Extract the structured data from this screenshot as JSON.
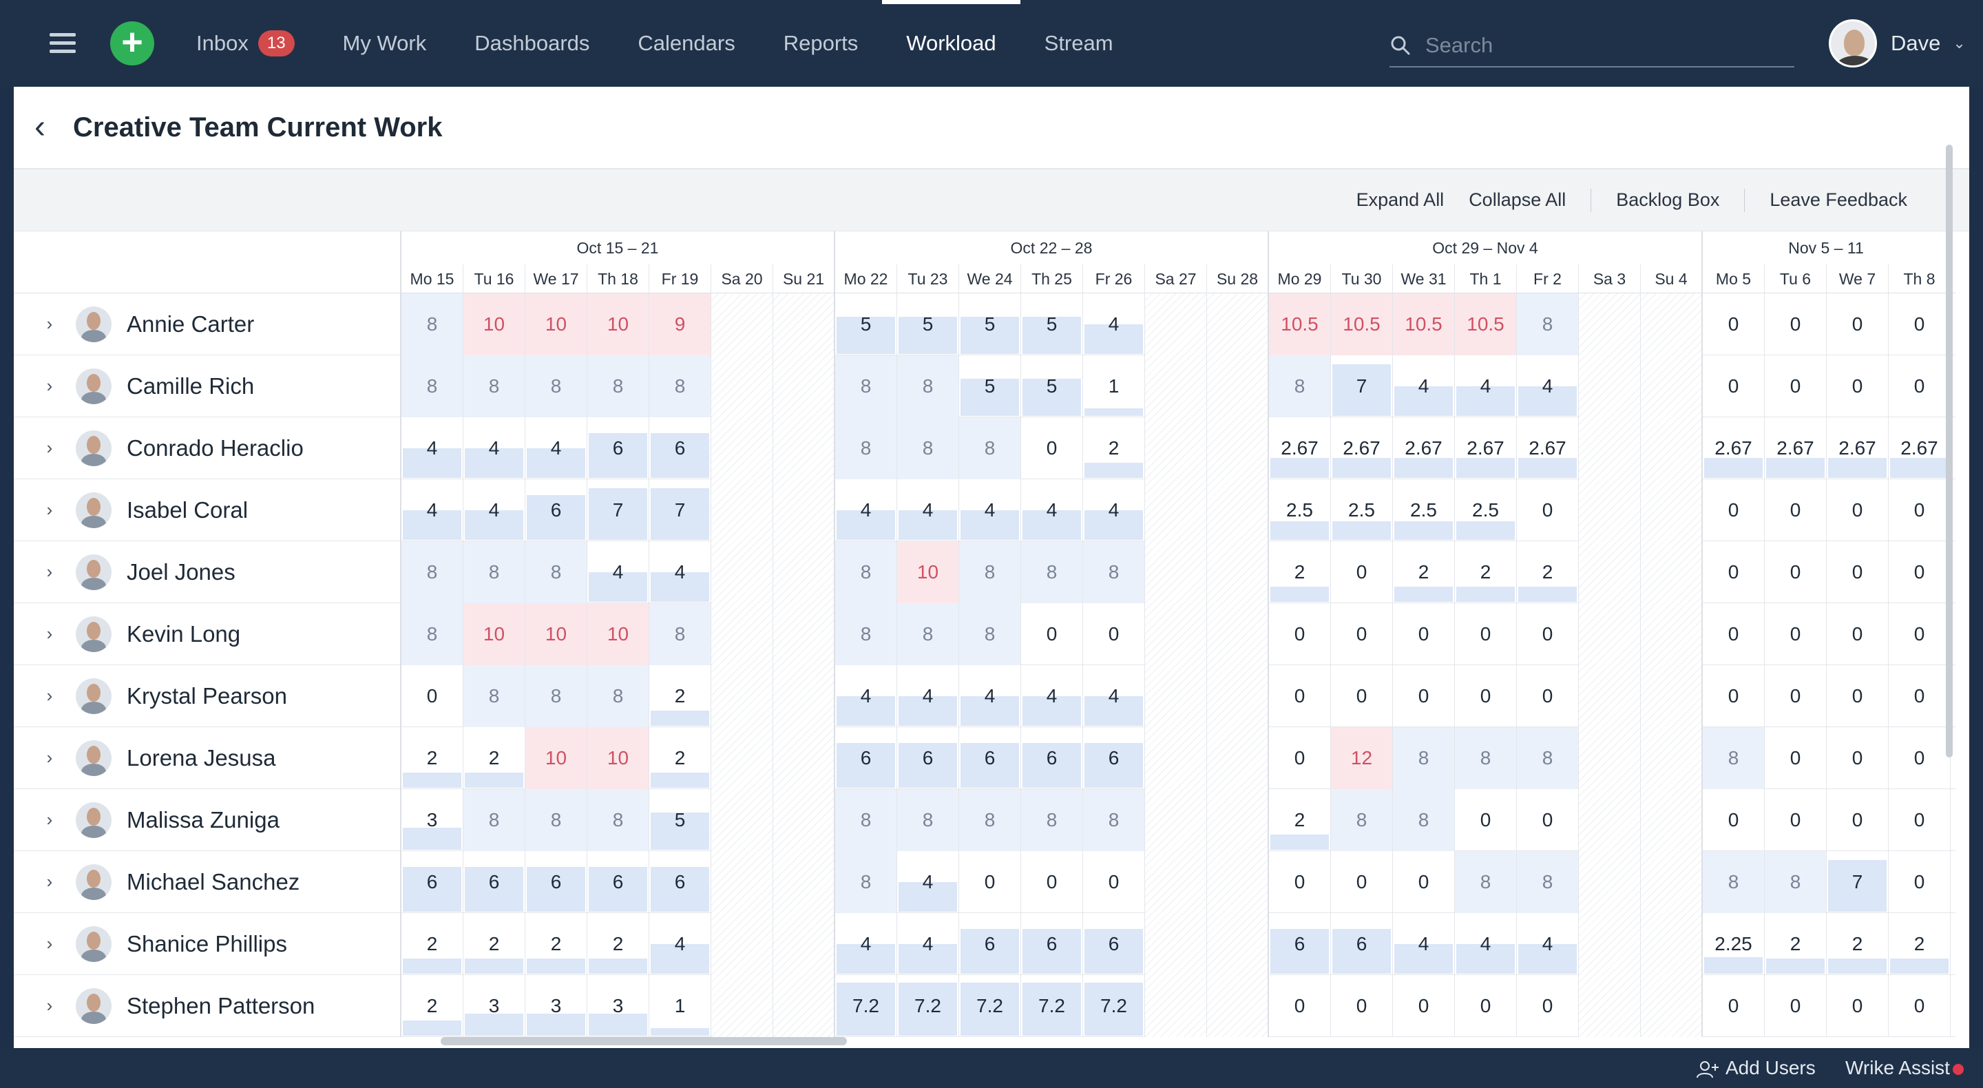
{
  "nav": {
    "add_label": "+",
    "items": [
      {
        "label": "Inbox",
        "badge": "13"
      },
      {
        "label": "My Work"
      },
      {
        "label": "Dashboards"
      },
      {
        "label": "Calendars"
      },
      {
        "label": "Reports"
      },
      {
        "label": "Workload",
        "active": true
      },
      {
        "label": "Stream"
      }
    ],
    "search_placeholder": "Search",
    "user_name": "Dave"
  },
  "page": {
    "title": "Creative Team Current Work",
    "back_icon": "chevron-left-icon"
  },
  "toolbar": {
    "expand_all": "Expand All",
    "collapse_all": "Collapse All",
    "backlog_box": "Backlog Box",
    "leave_feedback": "Leave Feedback"
  },
  "weeks": [
    {
      "label": "Oct 15 – 21",
      "days": [
        "Mo 15",
        "Tu 16",
        "We 17",
        "Th 18",
        "Fr 19",
        "Sa 20",
        "Su 21"
      ]
    },
    {
      "label": "Oct 22 – 28",
      "days": [
        "Mo 22",
        "Tu 23",
        "We 24",
        "Th 25",
        "Fr 26",
        "Sa 27",
        "Su 28"
      ]
    },
    {
      "label": "Oct 29 – Nov 4",
      "days": [
        "Mo 29",
        "Tu 30",
        "We 31",
        "Th 1",
        "Fr 2",
        "Sa 3",
        "Su 4"
      ]
    },
    {
      "label": "Nov 5 – 11",
      "days": [
        "Mo 5",
        "Tu 6",
        "We 7",
        "Th 8"
      ]
    }
  ],
  "capacity_hours": 8,
  "colors": {
    "full": "#ebf1fb",
    "over": "#fbe7ea",
    "over_text": "#d05062",
    "bar": "#dbe6f7",
    "topbar": "#1f3149",
    "add_button": "#2fb158",
    "badge": "#d34a4a"
  },
  "people": [
    {
      "name": "Annie Carter",
      "weeks": [
        [
          "8",
          "10",
          "10",
          "10",
          "9"
        ],
        [
          "5",
          "5",
          "5",
          "5",
          "4"
        ],
        [
          "10.5",
          "10.5",
          "10.5",
          "10.5",
          "8"
        ],
        [
          "0",
          "0",
          "0",
          "0"
        ]
      ]
    },
    {
      "name": "Camille Rich",
      "weeks": [
        [
          "8",
          "8",
          "8",
          "8",
          "8"
        ],
        [
          "8",
          "8",
          "5",
          "5",
          "1"
        ],
        [
          "8",
          "7",
          "4",
          "4",
          "4"
        ],
        [
          "0",
          "0",
          "0",
          "0"
        ]
      ]
    },
    {
      "name": "Conrado Heraclio",
      "weeks": [
        [
          "4",
          "4",
          "4",
          "6",
          "6"
        ],
        [
          "8",
          "8",
          "8",
          "0",
          "2"
        ],
        [
          "2.67",
          "2.67",
          "2.67",
          "2.67",
          "2.67"
        ],
        [
          "2.67",
          "2.67",
          "2.67",
          "2.67"
        ]
      ]
    },
    {
      "name": "Isabel Coral",
      "weeks": [
        [
          "4",
          "4",
          "6",
          "7",
          "7"
        ],
        [
          "4",
          "4",
          "4",
          "4",
          "4"
        ],
        [
          "2.5",
          "2.5",
          "2.5",
          "2.5",
          "0"
        ],
        [
          "0",
          "0",
          "0",
          "0"
        ]
      ]
    },
    {
      "name": "Joel Jones",
      "weeks": [
        [
          "8",
          "8",
          "8",
          "4",
          "4"
        ],
        [
          "8",
          "10",
          "8",
          "8",
          "8"
        ],
        [
          "2",
          "0",
          "2",
          "2",
          "2"
        ],
        [
          "0",
          "0",
          "0",
          "0"
        ]
      ]
    },
    {
      "name": "Kevin Long",
      "weeks": [
        [
          "8",
          "10",
          "10",
          "10",
          "8"
        ],
        [
          "8",
          "8",
          "8",
          "0",
          "0"
        ],
        [
          "0",
          "0",
          "0",
          "0",
          "0"
        ],
        [
          "0",
          "0",
          "0",
          "0"
        ]
      ]
    },
    {
      "name": "Krystal Pearson",
      "weeks": [
        [
          "0",
          "8",
          "8",
          "8",
          "2"
        ],
        [
          "4",
          "4",
          "4",
          "4",
          "4"
        ],
        [
          "0",
          "0",
          "0",
          "0",
          "0"
        ],
        [
          "0",
          "0",
          "0",
          "0"
        ]
      ]
    },
    {
      "name": "Lorena Jesusa",
      "weeks": [
        [
          "2",
          "2",
          "10",
          "10",
          "2"
        ],
        [
          "6",
          "6",
          "6",
          "6",
          "6"
        ],
        [
          "0",
          "12",
          "8",
          "8",
          "8"
        ],
        [
          "8",
          "0",
          "0",
          "0"
        ]
      ]
    },
    {
      "name": "Malissa Zuniga",
      "weeks": [
        [
          "3",
          "8",
          "8",
          "8",
          "5"
        ],
        [
          "8",
          "8",
          "8",
          "8",
          "8"
        ],
        [
          "2",
          "8",
          "8",
          "0",
          "0"
        ],
        [
          "0",
          "0",
          "0",
          "0"
        ]
      ]
    },
    {
      "name": "Michael Sanchez",
      "weeks": [
        [
          "6",
          "6",
          "6",
          "6",
          "6"
        ],
        [
          "8",
          "4",
          "0",
          "0",
          "0"
        ],
        [
          "0",
          "0",
          "0",
          "8",
          "8"
        ],
        [
          "8",
          "8",
          "7",
          "0"
        ]
      ]
    },
    {
      "name": "Shanice Phillips",
      "weeks": [
        [
          "2",
          "2",
          "2",
          "2",
          "4"
        ],
        [
          "4",
          "4",
          "6",
          "6",
          "6"
        ],
        [
          "6",
          "6",
          "4",
          "4",
          "4"
        ],
        [
          "2.25",
          "2",
          "2",
          "2"
        ]
      ]
    },
    {
      "name": "Stephen Patterson",
      "weeks": [
        [
          "2",
          "3",
          "3",
          "3",
          "1"
        ],
        [
          "7.2",
          "7.2",
          "7.2",
          "7.2",
          "7.2"
        ],
        [
          "0",
          "0",
          "0",
          "0",
          "0"
        ],
        [
          "0",
          "0",
          "0",
          "0"
        ]
      ]
    }
  ],
  "footer": {
    "add_users": "Add Users",
    "wrike_assist": "Wrike Assist"
  }
}
